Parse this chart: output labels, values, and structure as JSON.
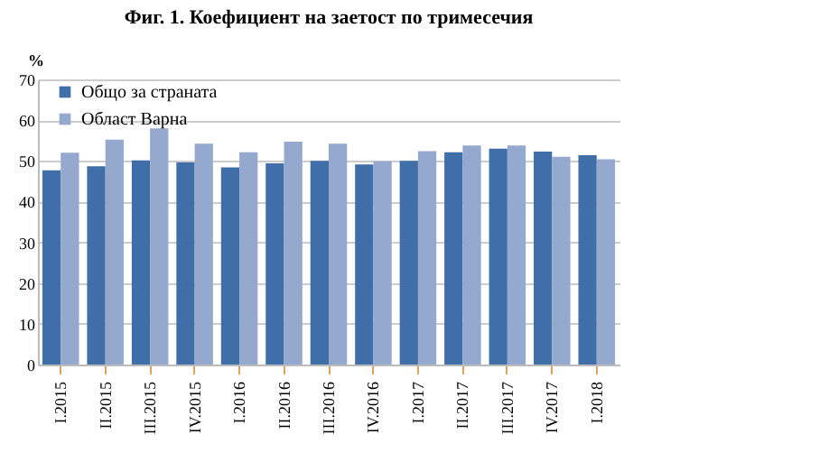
{
  "chart_data": {
    "type": "bar",
    "title": "Фиг. 1. Коефициент на заетост по тримесечия",
    "ylabel": "%",
    "categories": [
      "I.2015",
      "II.2015",
      "III.2015",
      "IV.2015",
      "I.2016",
      "II.2016",
      "III.2016",
      "IV.2016",
      "I.2017",
      "II.2017",
      "III.2017",
      "IV.2017",
      "I.2018"
    ],
    "series": [
      {
        "name": "Общо за страната",
        "color": "#3f6ea8",
        "values": [
          47.7,
          48.7,
          50.1,
          49.6,
          48.4,
          49.4,
          50.0,
          49.1,
          50.0,
          52.1,
          53.0,
          52.3,
          51.4
        ]
      },
      {
        "name": "Област Варна",
        "color": "#95a9cf",
        "values": [
          52.0,
          55.2,
          58.0,
          54.2,
          52.1,
          54.7,
          54.2,
          49.9,
          52.4,
          53.8,
          53.8,
          51.0,
          50.4
        ]
      }
    ],
    "ylim": [
      0,
      70
    ],
    "yticks": [
      0,
      10,
      20,
      30,
      40,
      50,
      60,
      70
    ],
    "grid": "y",
    "legend": "top left"
  }
}
